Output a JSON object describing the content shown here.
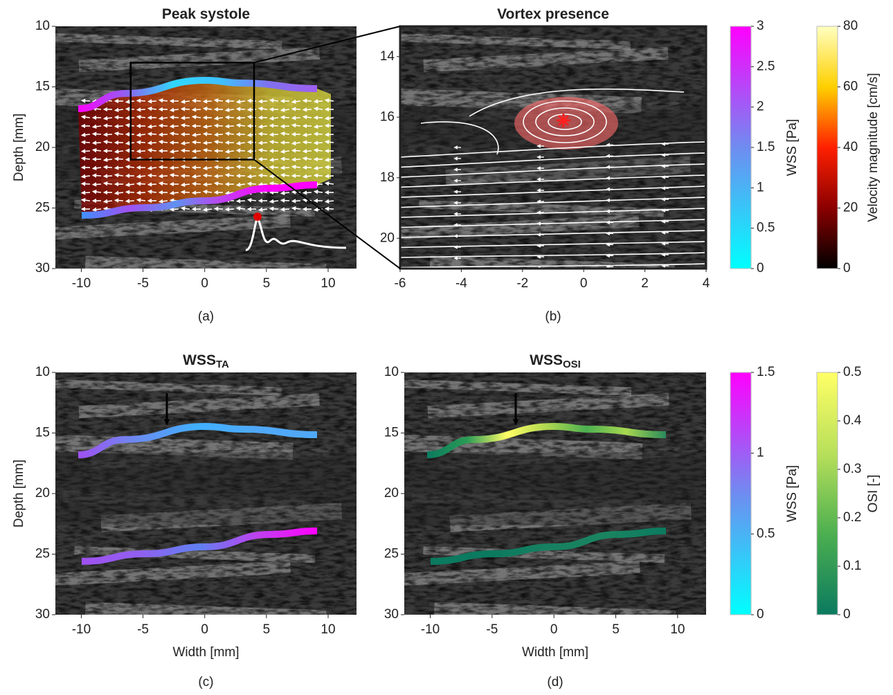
{
  "chart_data": [
    {
      "type": "image",
      "title": "Peak systole",
      "panel": "(a)",
      "ylabel": "Depth [mm]",
      "xlim": [
        -12.1,
        12.3
      ],
      "ylim": [
        10,
        30
      ],
      "y_reversed": true,
      "xticks": [
        -10,
        -5,
        0,
        5,
        10
      ],
      "yticks": [
        10,
        15,
        20,
        25,
        30
      ]
    },
    {
      "type": "image",
      "title": "Vortex presence",
      "panel": "(b)",
      "xlim": [
        -6,
        4
      ],
      "ylim": [
        13,
        21
      ],
      "y_reversed": true,
      "xticks": [
        -6,
        -4,
        -2,
        0,
        2,
        4
      ],
      "yticks": [
        14,
        16,
        18,
        20
      ]
    },
    {
      "type": "image",
      "title": "WSS",
      "title_subscript": "TA",
      "panel": "(c)",
      "xlabel": "Width [mm]",
      "ylabel": "Depth [mm]",
      "xlim": [
        -12.1,
        12.3
      ],
      "ylim": [
        10,
        30
      ],
      "y_reversed": true,
      "xticks": [
        -10,
        -5,
        0,
        5,
        10
      ],
      "yticks": [
        10,
        15,
        20,
        25,
        30
      ]
    },
    {
      "type": "image",
      "title": "WSS",
      "title_subscript": "OSI",
      "panel": "(d)",
      "xlabel": "Width [mm]",
      "xlim": [
        -12.1,
        12.3
      ],
      "ylim": [
        10,
        30
      ],
      "y_reversed": true,
      "xticks": [
        -10,
        -5,
        0,
        5,
        10
      ],
      "yticks": [
        10,
        15,
        20,
        25,
        30
      ]
    },
    {
      "type": "colorbar",
      "label": "WSS [Pa]",
      "ylim": [
        0,
        3
      ],
      "yticks": [
        0,
        0.5,
        1,
        1.5,
        2,
        2.5,
        3
      ],
      "colors": [
        "#00ffff",
        "#6f8cf0",
        "#ff00ff"
      ]
    },
    {
      "type": "colorbar",
      "label": "Velocity magnitude [cm/s]",
      "ylim": [
        0,
        80
      ],
      "yticks": [
        0,
        20,
        40,
        60,
        80
      ],
      "colors": [
        "#000000",
        "#8b0000",
        "#ff2000",
        "#ffd000",
        "#ffffc0"
      ]
    },
    {
      "type": "colorbar",
      "label": "WSS [Pa]",
      "ylim": [
        0,
        1.5
      ],
      "yticks": [
        0,
        0.5,
        1,
        1.5
      ],
      "colors": [
        "#00ffff",
        "#6f8cf0",
        "#ff00ff"
      ]
    },
    {
      "type": "colorbar",
      "label": "OSI [-]",
      "ylim": [
        0,
        0.5
      ],
      "yticks": [
        0,
        0.1,
        0.2,
        0.3,
        0.4,
        0.5
      ],
      "colors": [
        "#0b7a5f",
        "#4caf50",
        "#b8e05a",
        "#ffff66"
      ]
    }
  ]
}
